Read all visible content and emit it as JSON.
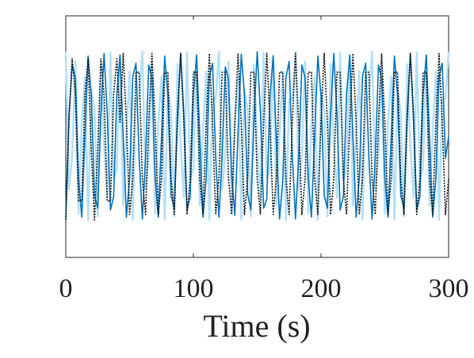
{
  "chart_data": {
    "type": "line",
    "xlabel": "Time (s)",
    "x": [
      0,
      2.5,
      5,
      7.5,
      10,
      12.5,
      15,
      17.5,
      20,
      22.5,
      25,
      27.5,
      30,
      32.5,
      35,
      37.5,
      40,
      42.5,
      45,
      47.5,
      50,
      52.5,
      55,
      57.5,
      60,
      62.5,
      65,
      67.5,
      70,
      72.5,
      75,
      77.5,
      80,
      82.5,
      85,
      87.5,
      90,
      92.5,
      95,
      97.5,
      100,
      102.5,
      105,
      107.5,
      110,
      112.5,
      115,
      117.5,
      120,
      122.5,
      125,
      127.5,
      130,
      132.5,
      135,
      137.5,
      140,
      142.5,
      145,
      147.5,
      150,
      152.5,
      155,
      157.5,
      160,
      162.5,
      165,
      167.5,
      170,
      172.5,
      175,
      177.5,
      180,
      182.5,
      185,
      187.5,
      190,
      192.5,
      195,
      197.5,
      200,
      202.5,
      205,
      207.5,
      210,
      212.5,
      215,
      217.5,
      220,
      222.5,
      225,
      227.5,
      230,
      232.5,
      235,
      237.5,
      240,
      242.5,
      245,
      247.5,
      250,
      252.5,
      255,
      257.5,
      260,
      262.5,
      265,
      267.5,
      270,
      272.5,
      275,
      277.5,
      280,
      282.5,
      285,
      287.5,
      290,
      292.5,
      295,
      297.5,
      300
    ],
    "series": [
      {
        "color": "#b3e0f7",
        "values": [
          0.95,
          -0.59,
          -0.21,
          0.84,
          -0.86,
          0.16,
          0.67,
          -0.93,
          0.53,
          0.29,
          -0.89,
          0.81,
          -0.1,
          -0.68,
          0.94,
          -0.48,
          -0.35,
          0.91,
          -0.77,
          0.03,
          0.73,
          -0.93,
          0.42,
          0.42,
          0.95,
          -0.59,
          -0.21,
          0.84,
          -0.86,
          0.16,
          0.67,
          -0.93,
          0.53,
          0.29,
          -0.89,
          0.81,
          -0.1,
          -0.68,
          0.94,
          -0.48,
          -0.35,
          0.91,
          -0.77,
          0.03,
          0.73,
          -0.93,
          0.42,
          0.42,
          0.95,
          -0.59,
          -0.21,
          0.84,
          -0.86,
          0.16,
          0.67,
          -0.93,
          0.53,
          0.29,
          -0.89,
          0.81,
          -0.1,
          -0.68,
          0.94,
          -0.48,
          -0.35,
          0.91,
          -0.77,
          0.03,
          0.73,
          -0.93,
          0.42,
          0.42,
          0.95,
          -0.59,
          -0.21,
          0.84,
          -0.86,
          0.16,
          0.67,
          -0.93,
          0.53,
          0.29,
          -0.89,
          0.81,
          -0.1,
          -0.68,
          0.94,
          -0.48,
          -0.35,
          0.91,
          -0.77,
          0.03,
          0.73,
          -0.93,
          0.42,
          0.42,
          0.95,
          -0.59,
          -0.21,
          0.84,
          -0.86,
          0.16,
          0.67,
          -0.93,
          0.53,
          0.29,
          -0.89,
          0.81,
          -0.1,
          -0.68,
          0.94,
          -0.48,
          -0.35,
          0.91,
          -0.77,
          0.03,
          0.73,
          -0.93,
          0.42,
          0.42,
          0.95
        ]
      },
      {
        "color": "#0072bd",
        "values": [
          -0.92,
          0.24,
          0.8,
          0.66,
          -0.46,
          -0.9,
          0,
          0.9,
          0.46,
          -0.66,
          -0.8,
          0.24,
          0.93,
          0.25,
          -0.82,
          -0.67,
          0.47,
          0.91,
          0,
          -0.9,
          -0.47,
          0.67,
          0.82,
          -0.24,
          -0.92,
          -0.24,
          0.8,
          0.66,
          -0.46,
          -0.9,
          0,
          0.9,
          0.46,
          -0.66,
          -0.8,
          0.24,
          0.93,
          0.25,
          -0.82,
          -0.67,
          0.47,
          0.91,
          0,
          -0.9,
          -0.47,
          0.67,
          0.82,
          -0.24,
          -0.9,
          -0.22,
          0.78,
          0.64,
          -0.44,
          -0.88,
          0.05,
          0.92,
          0.48,
          -0.64,
          -0.82,
          0.2,
          0.95,
          0.28,
          -0.8,
          -0.7,
          0.45,
          0.9,
          -0.05,
          -0.92,
          -0.5,
          0.66,
          0.84,
          -0.2,
          -0.92,
          -0.24,
          0.8,
          0.66,
          -0.46,
          -0.9,
          0,
          0.9,
          0.46,
          -0.66,
          -0.8,
          0.24,
          0.93,
          0.25,
          -0.82,
          -0.67,
          0.47,
          0.91,
          0,
          -0.9,
          -0.47,
          0.67,
          0.82,
          -0.24,
          -0.92,
          -0.24,
          0.8,
          0.66,
          -0.46,
          -0.9,
          0,
          0.9,
          0.46,
          -0.66,
          -0.8,
          0.24,
          0.93,
          0.25,
          -0.82,
          -0.67,
          0.47,
          0.91,
          0,
          -0.9,
          -0.47,
          0.67,
          0.82,
          -0.24,
          0
        ]
      },
      {
        "color": "#111111",
        "values": [
          -0.93,
          0.16,
          0.87,
          0.47,
          -0.72,
          -0.72,
          0.47,
          0.87,
          -0.16,
          -0.93,
          -0.16,
          0.87,
          0.47,
          -0.72,
          -0.72,
          0.47,
          0.87,
          0.16,
          0.93,
          0.16,
          -0.87,
          -0.47,
          0.72,
          0.72,
          -0.47,
          -0.87,
          0.16,
          0.93,
          0.16,
          -0.87,
          -0.47,
          0.72,
          0.72,
          -0.47,
          -0.87,
          0.16,
          0.93,
          0.16,
          -0.87,
          -0.47,
          0.72,
          0.72,
          -0.47,
          -0.87,
          0.16,
          0.93,
          0.16,
          -0.87,
          -0.47,
          0.72,
          0.72,
          -0.47,
          -0.87,
          0.16,
          0.93,
          0.16,
          -0.87,
          -0.47,
          0.72,
          0.72,
          -0.47,
          -0.87,
          0.16,
          0.93,
          0.16,
          -0.87,
          -0.47,
          0.72,
          0.72,
          -0.47,
          -0.87,
          0.16,
          0.93,
          0.16,
          -0.87,
          -0.47,
          0.72,
          0.72,
          -0.47,
          -0.87,
          0.16,
          0.93,
          0.16,
          -0.87,
          -0.47,
          0.72,
          0.72,
          -0.47,
          -0.87,
          0.16,
          0.93,
          0.16,
          -0.87,
          -0.47,
          0.72,
          0.72,
          -0.47,
          -0.87,
          0.16,
          0.93,
          0.16,
          -0.87,
          -0.47,
          0.72,
          0.72,
          -0.47,
          -0.87,
          0.16,
          0.93,
          0.16,
          -0.87,
          -0.47,
          0.72,
          0.72,
          -0.47,
          -0.87,
          0.16,
          0.93,
          0.16,
          -0.87,
          -0.47
        ]
      }
    ],
    "xlim": [
      0,
      300
    ],
    "xticks": [
      0,
      100,
      200,
      300
    ],
    "ylim": [
      -1.35,
      1.35
    ]
  }
}
